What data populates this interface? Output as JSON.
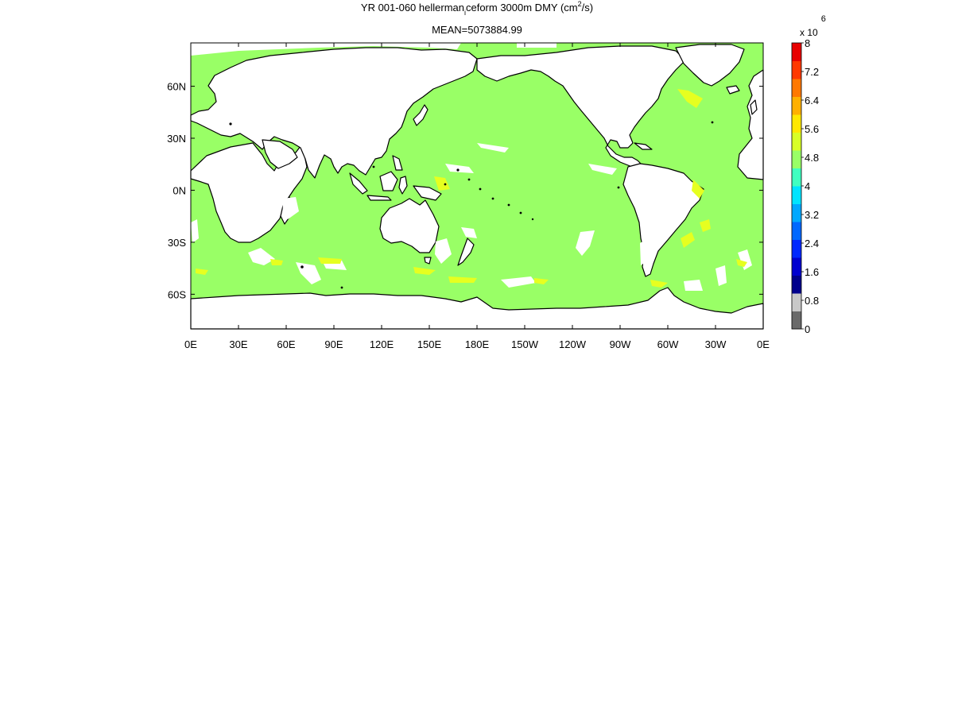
{
  "title": {
    "prefix": "YR 001-060 hellerman",
    "subscript": "i",
    "middle": "ceform 3000m DMY (cm",
    "superscript": "2",
    "suffix": "/s)"
  },
  "subtitle": "MEAN=5073884.99",
  "map": {
    "lon_ticks": [
      "0E",
      "30E",
      "60E",
      "90E",
      "120E",
      "150E",
      "180E",
      "150W",
      "120W",
      "90W",
      "60W",
      "30W",
      "0E"
    ],
    "lat_ticks": [
      "60N",
      "30N",
      "0N",
      "30S",
      "60S"
    ],
    "lon_range": [
      0,
      360
    ],
    "lat_range": [
      -80,
      85
    ],
    "ocean_color": "#99ff66",
    "land_color": "#ffffff",
    "coast_color": "#000000"
  },
  "colorbar": {
    "multiplier_base": "x 10",
    "multiplier_exp": "6",
    "range": [
      0,
      8
    ],
    "tick_labels": [
      "8",
      "7.2",
      "6.4",
      "5.6",
      "4.8",
      "4",
      "3.2",
      "2.4",
      "1.6",
      "0.8",
      "0"
    ],
    "colors": [
      "#6a6a6a",
      "#c8c8c8",
      "#00008c",
      "#0000d0",
      "#0028ff",
      "#0068ff",
      "#00a8ff",
      "#00e4ff",
      "#40ffc0",
      "#99ff66",
      "#d8ff26",
      "#ffe800",
      "#ffb000",
      "#ff7800",
      "#ff3800",
      "#e80000"
    ]
  }
}
